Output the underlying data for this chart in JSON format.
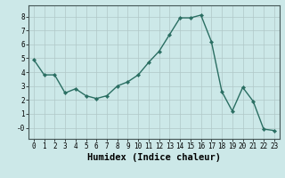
{
  "x": [
    0,
    1,
    2,
    3,
    4,
    5,
    6,
    7,
    8,
    9,
    10,
    11,
    12,
    13,
    14,
    15,
    16,
    17,
    18,
    19,
    20,
    21,
    22,
    23
  ],
  "y": [
    4.9,
    3.8,
    3.8,
    2.5,
    2.8,
    2.3,
    2.1,
    2.3,
    3.0,
    3.3,
    3.8,
    4.7,
    5.5,
    6.7,
    7.9,
    7.9,
    8.1,
    6.2,
    2.6,
    1.2,
    2.9,
    1.9,
    -0.1,
    -0.2
  ],
  "line_color": "#2a6e62",
  "marker": "D",
  "marker_size": 2.2,
  "line_width": 1.0,
  "bg_color": "#cce8e8",
  "grid_color": "#b0c8c8",
  "xlabel": "Humidex (Indice chaleur)",
  "xlabel_fontsize": 7.5,
  "xlim": [
    -0.5,
    23.5
  ],
  "ylim": [
    -0.8,
    8.8
  ],
  "ytick_vals": [
    0,
    1,
    2,
    3,
    4,
    5,
    6,
    7,
    8
  ],
  "ytick_labels": [
    "-0",
    "1",
    "2",
    "3",
    "4",
    "5",
    "6",
    "7",
    "8"
  ],
  "xticks": [
    0,
    1,
    2,
    3,
    4,
    5,
    6,
    7,
    8,
    9,
    10,
    11,
    12,
    13,
    14,
    15,
    16,
    17,
    18,
    19,
    20,
    21,
    22,
    23
  ],
  "tick_fontsize": 5.5,
  "axis_bg": "#cce8e8",
  "bottom_bar_color": "#336666",
  "bottom_bar_height": 0.13
}
